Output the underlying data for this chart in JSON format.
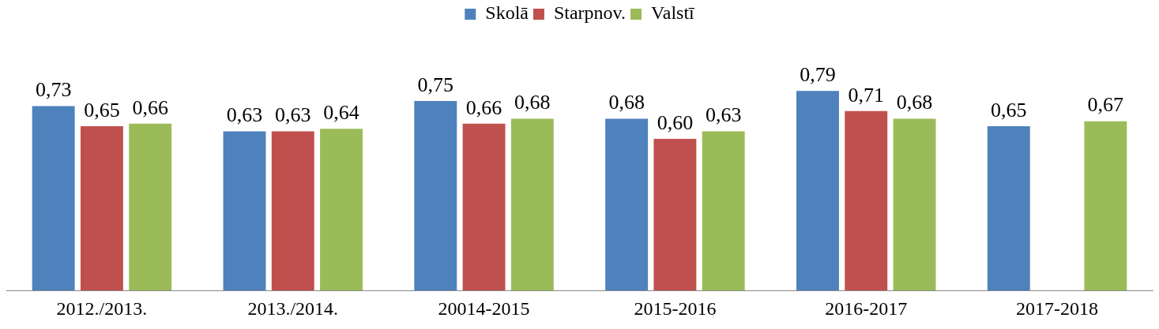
{
  "chart_data": {
    "type": "bar",
    "categories": [
      "2012./2013.",
      "2013./2014.",
      "20014-2015",
      "2015-2016",
      "2016-2017",
      "2017-2018"
    ],
    "series": [
      {
        "name": "Skolā",
        "color": "#4f81bd",
        "values": [
          0.73,
          0.63,
          0.75,
          0.68,
          0.79,
          0.65
        ],
        "value_labels": [
          "0,73",
          "0,63",
          "0,75",
          "0,68",
          "0,79",
          "0,65"
        ]
      },
      {
        "name": "Starpnov.",
        "color": "#c0504d",
        "values": [
          0.65,
          0.63,
          0.66,
          0.6,
          0.71,
          null
        ],
        "value_labels": [
          "0,65",
          "0,63",
          "0,66",
          "0,60",
          "0,71",
          null
        ]
      },
      {
        "name": "Valstī",
        "color": "#9bbb59",
        "values": [
          0.66,
          0.64,
          0.68,
          0.63,
          0.68,
          0.67
        ],
        "value_labels": [
          "0,66",
          "0,64",
          "0,68",
          "0,63",
          "0,68",
          "0,67"
        ]
      }
    ],
    "tick_labels": "x",
    "grid": false,
    "legend": "top"
  }
}
